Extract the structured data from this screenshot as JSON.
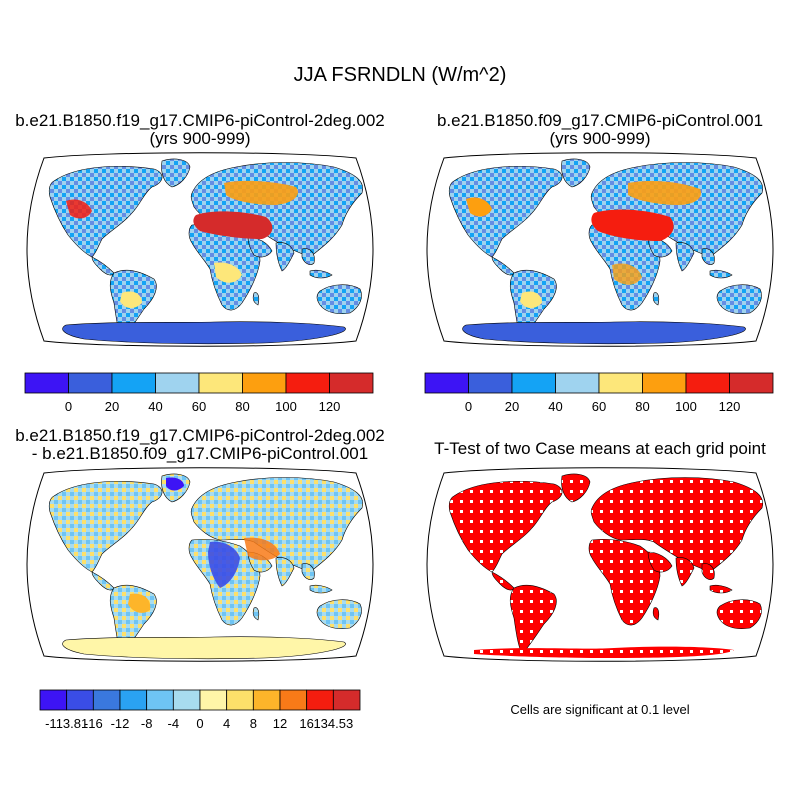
{
  "main_title": "JJA FSRNDLN (W/m^2)",
  "panels": [
    {
      "line1": "b.e21.B1850.f19_g17.CMIP6-piControl-2deg.002",
      "line2": "(yrs 900-999)"
    },
    {
      "line1": "b.e21.B1850.f09_g17.CMIP6-piControl.001",
      "line2": "(yrs 900-999)"
    },
    {
      "line1": "b.e21.B1850.f19_g17.CMIP6-piControl-2deg.002",
      "line2": "- b.e21.B1850.f09_g17.CMIP6-piControl.001"
    },
    {
      "line1": "T-Test of two Case means at each grid point"
    }
  ],
  "colorbars": {
    "mean": {
      "colors": [
        "#3d14f5",
        "#3a5fdc",
        "#14a3f5",
        "#9fd3ef",
        "#fde77a",
        "#fd9f0f",
        "#f51d0f",
        "#d52b2b"
      ],
      "labels": [
        "0",
        "20",
        "40",
        "60",
        "80",
        "100",
        "120"
      ]
    },
    "diff": {
      "colors": [
        "#3d14f5",
        "#3a4de6",
        "#3a78de",
        "#2aa2f2",
        "#6ec4f4",
        "#a8dcef",
        "#fff6a8",
        "#fde06a",
        "#fdb52a",
        "#f87a18",
        "#f51d0f",
        "#d52b2b"
      ],
      "labels": [
        "-113.81",
        "-16",
        "-12",
        "-8",
        "-4",
        "0",
        "4",
        "8",
        "12",
        "16",
        "134.53"
      ]
    }
  },
  "significance_note": "Cells are significant at 0.1 level",
  "map_colors": {
    "ocean": "#ffffff",
    "outline": "#000000",
    "sig": "#ff0000",
    "antarctic": "#3a5fdc",
    "antarctic_diff": "#fff6a8"
  }
}
